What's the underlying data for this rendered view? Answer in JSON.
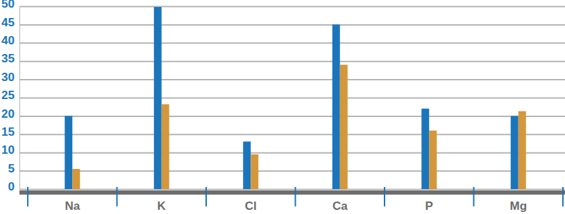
{
  "chart_data": {
    "type": "bar",
    "categories": [
      "Na",
      "K",
      "Cl",
      "Ca",
      "P",
      "Mg"
    ],
    "series": [
      {
        "color": "#1b75bb",
        "values": [
          20,
          49.8,
          13,
          45,
          22,
          20
        ]
      },
      {
        "color": "#d4973b",
        "values": [
          5.5,
          23.2,
          9.5,
          34,
          16,
          21.3
        ]
      }
    ],
    "ylim": [
      0,
      50
    ],
    "yticks": [
      0,
      5,
      10,
      15,
      20,
      25,
      30,
      35,
      40,
      45,
      50
    ],
    "grid": true
  }
}
